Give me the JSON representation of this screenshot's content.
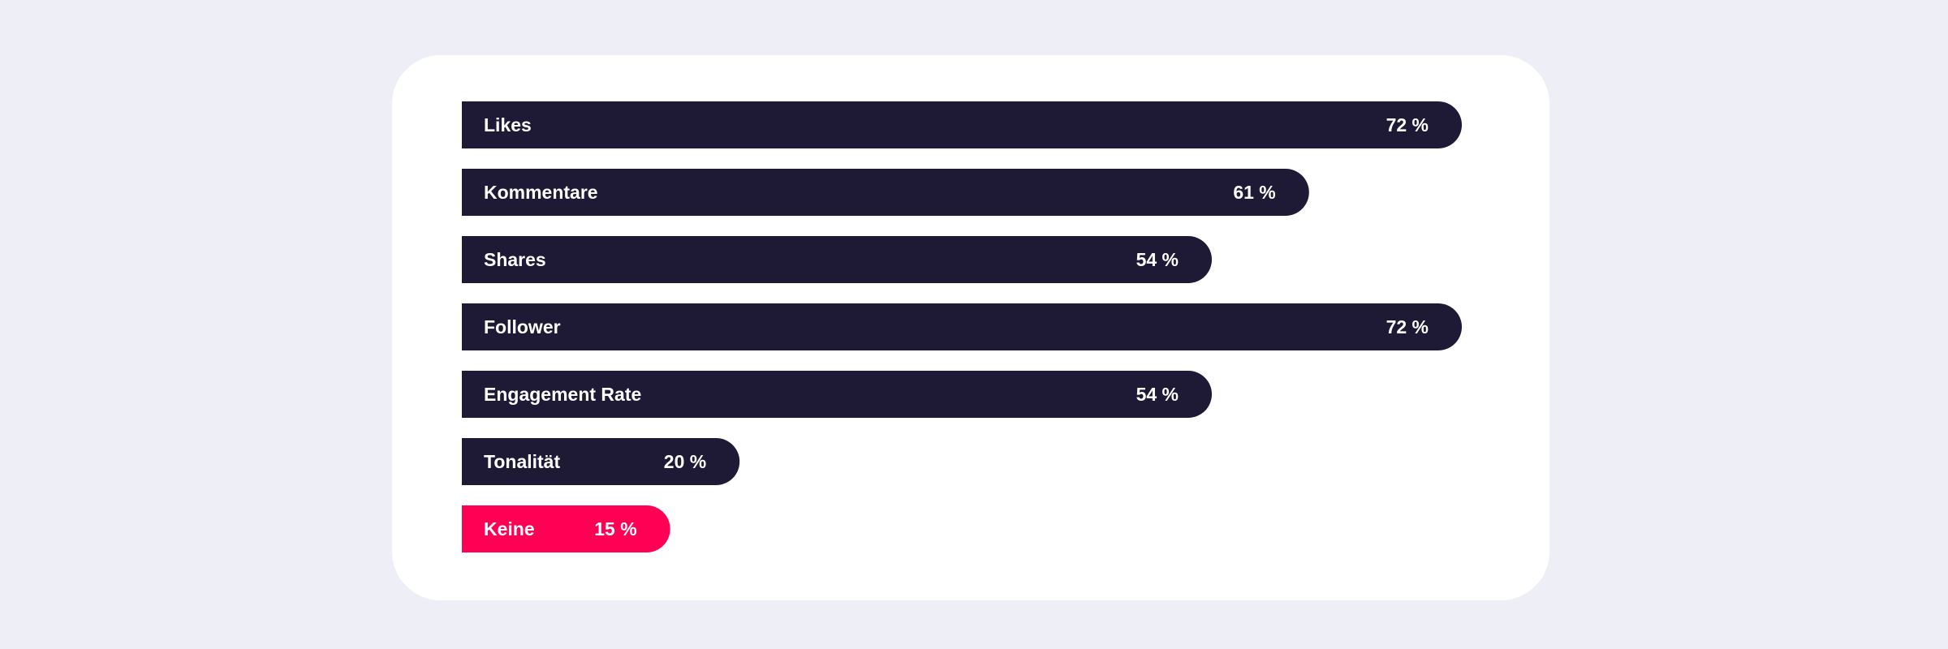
{
  "chart_data": {
    "type": "bar",
    "orientation": "horizontal",
    "categories": [
      "Likes",
      "Kommentare",
      "Shares",
      "Follower",
      "Engagement Rate",
      "Tonalität",
      "Keine"
    ],
    "values": [
      72,
      61,
      54,
      72,
      54,
      20,
      15
    ],
    "value_labels": [
      "72 %",
      "61 %",
      "54 %",
      "72 %",
      "54 %",
      "20 %",
      "15 %"
    ],
    "unit": "%",
    "xlim": [
      0,
      100
    ],
    "colors": {
      "default": "#1e1a36",
      "highlight": "#ff0055",
      "highlight_category": "Keine"
    },
    "grid": false,
    "legend": "none"
  }
}
